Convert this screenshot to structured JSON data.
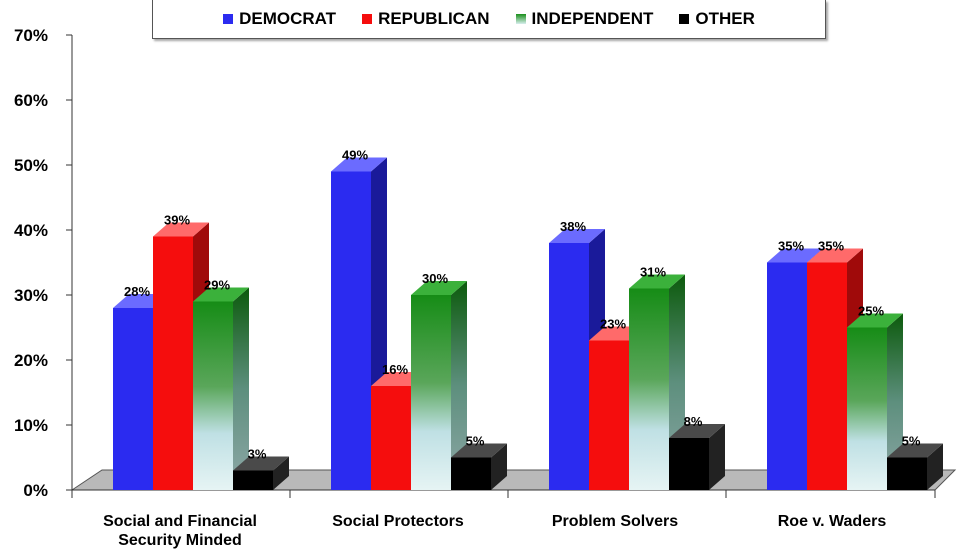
{
  "chart_data": {
    "type": "bar",
    "categories": [
      "Social and Financial Security Minded",
      "Social Protectors",
      "Problem Solvers",
      "Roe v. Waders"
    ],
    "series": [
      {
        "name": "DEMOCRAT",
        "values": [
          28,
          49,
          38,
          35
        ],
        "labels": [
          "28%",
          "49%",
          "38%",
          "35%"
        ]
      },
      {
        "name": "REPUBLICAN",
        "values": [
          39,
          16,
          23,
          35
        ],
        "labels": [
          "39%",
          "16%",
          "23%",
          "35%"
        ]
      },
      {
        "name": "INDEPENDENT",
        "values": [
          29,
          30,
          31,
          25
        ],
        "labels": [
          "29%",
          "30%",
          "31%",
          "25%"
        ]
      },
      {
        "name": "OTHER",
        "values": [
          3,
          5,
          8,
          5
        ],
        "labels": [
          "3%",
          "5%",
          "8%",
          "5%"
        ]
      }
    ],
    "y_ticks": [
      "0%",
      "10%",
      "20%",
      "30%",
      "40%",
      "50%",
      "60%",
      "70%"
    ],
    "ylim": [
      0,
      70
    ],
    "legend_position": "top",
    "grid": false,
    "colors": {
      "DEMOCRAT": "#2b2bf0",
      "REPUBLICAN": "#f50d0d",
      "INDEPENDENT": "#1a8f1a",
      "OTHER": "#000000"
    }
  }
}
